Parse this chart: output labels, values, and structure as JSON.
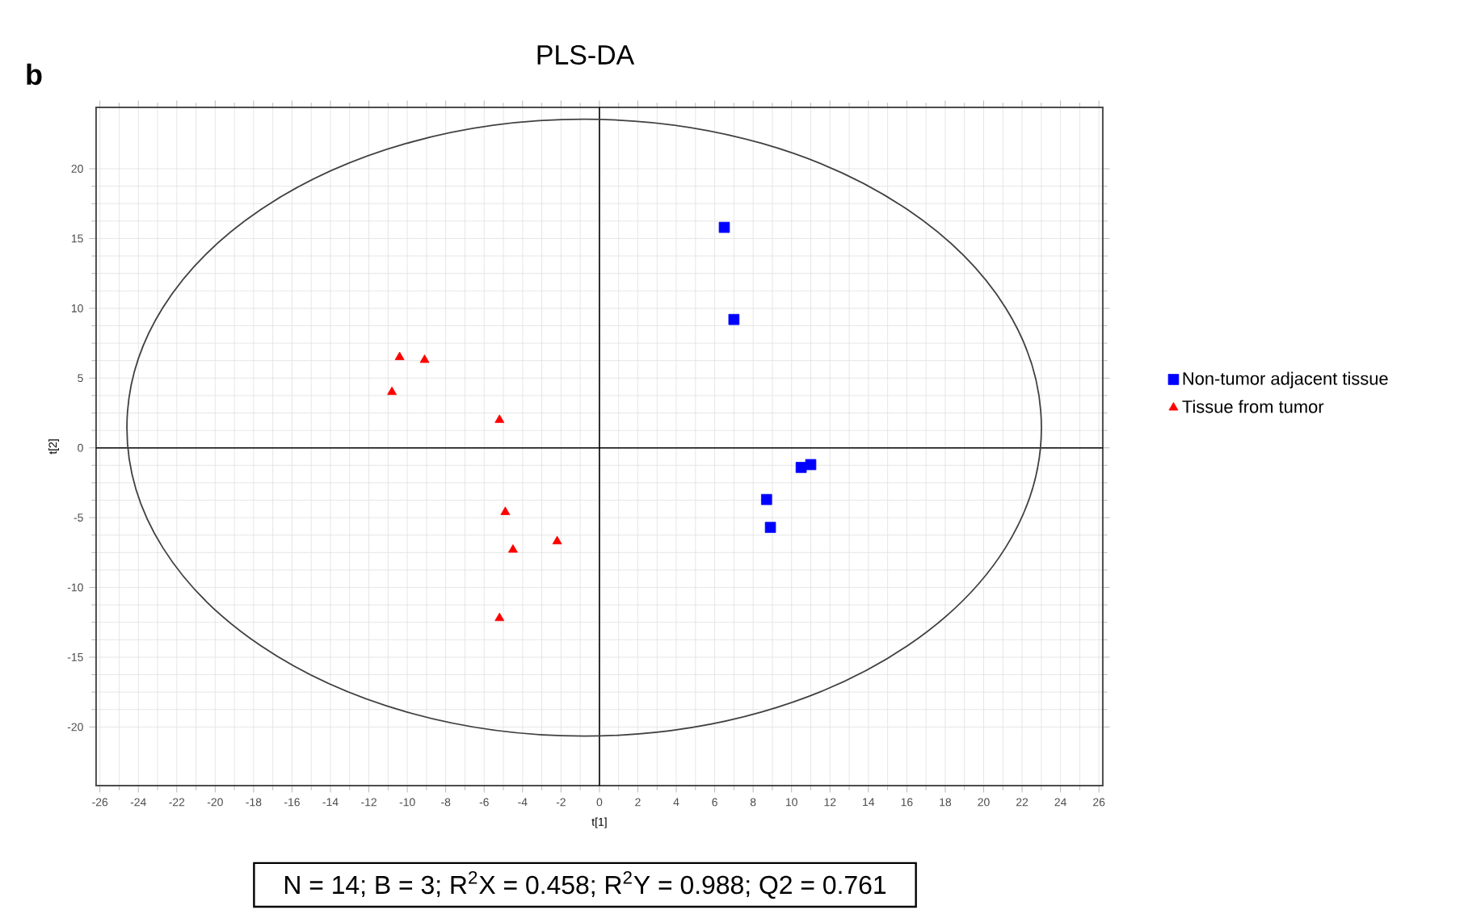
{
  "chart_data": {
    "type": "scatter",
    "title": "PLS-DA",
    "xlabel": "t[1]",
    "ylabel": "t[2]",
    "xlim": [
      -26.2,
      26.2
    ],
    "ylim": [
      -24.2,
      24.4
    ],
    "xticks": [
      -26,
      -24,
      -22,
      -20,
      -18,
      -16,
      -14,
      -12,
      -10,
      -8,
      -6,
      -4,
      -2,
      0,
      2,
      4,
      6,
      8,
      10,
      12,
      14,
      16,
      18,
      20,
      22,
      24,
      26
    ],
    "yticks": [
      -20,
      -15,
      -10,
      -5,
      0,
      5,
      10,
      15,
      20
    ],
    "grid": true,
    "legend": "right",
    "annotations": [
      "b",
      "N = 14; B = 3; R$^{2}$X = 0.458; R$^{2}$Y = 0.988; Q2 = 0.761"
    ],
    "series": [
      {
        "name": "Non-tumor adjacent tissue",
        "color": "#0000ff",
        "marker": "square",
        "x": [
          6.5,
          7.0,
          8.7,
          8.9,
          10.5,
          11.0
        ],
        "values": [
          15.8,
          9.2,
          -3.7,
          -5.7,
          -1.4,
          -1.2
        ]
      },
      {
        "name": "Tissue from tumor",
        "color": "#ff0000",
        "marker": "triangle",
        "x": [
          -10.4,
          -9.1,
          -10.8,
          -5.2,
          -4.9,
          -4.5,
          -2.2,
          -5.2
        ],
        "values": [
          6.5,
          6.3,
          4.0,
          2.0,
          -4.6,
          -7.3,
          -6.7,
          -12.2
        ]
      }
    ]
  }
}
